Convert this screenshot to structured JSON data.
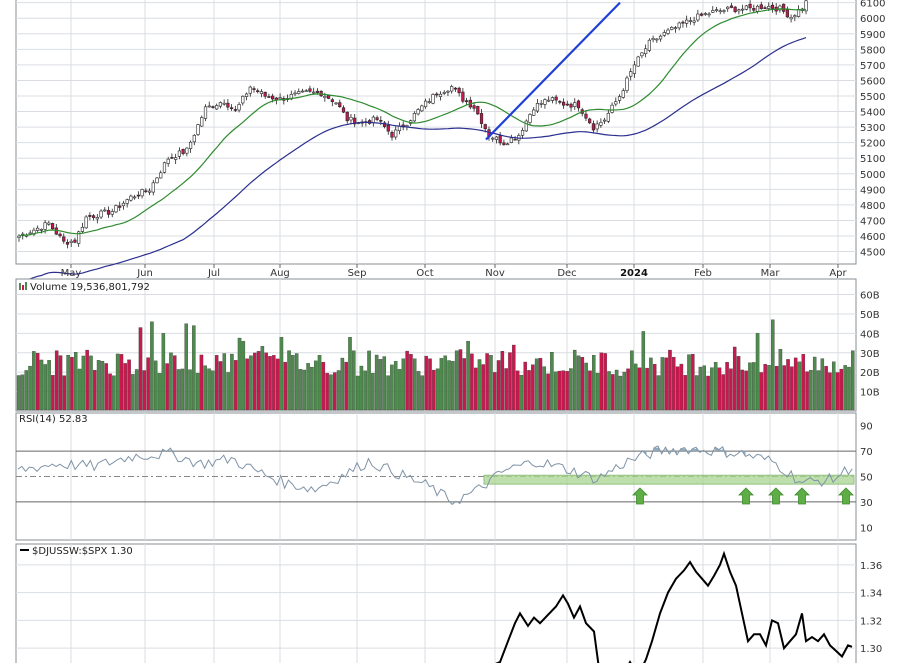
{
  "colors": {
    "up": "#4e8a4e",
    "down": "#c8194f",
    "candle_outline": "#222222",
    "ma_fast": "#2e8b2e",
    "ma_slow": "#2b2f8f",
    "trendline": "#1f3fd6",
    "rsi_line": "#7f93a6",
    "rsi_fill": "#8fa9bd",
    "rsi_band": "#a9d48f",
    "arrow": "#5fae45",
    "ratio_line": "#000000",
    "grid": "#d9dde2",
    "panel_bg": "#ffffff"
  },
  "months": [
    "May",
    "Jun",
    "Jul",
    "Aug",
    "Sep",
    "Oct",
    "Nov",
    "Dec",
    "2024",
    "Feb",
    "Mar",
    "Apr"
  ],
  "chart_data": [
    {
      "type": "candlestick",
      "y_ticks": [
        4500,
        4600,
        4700,
        4800,
        4900,
        5000,
        5100,
        5200,
        5300,
        5400,
        5500,
        5600,
        5700,
        5800,
        5900,
        6000,
        6100
      ],
      "ylim": [
        4420,
        6130
      ],
      "x_axis": "May to Apr",
      "overlays": [
        "moving-average-fast",
        "moving-average-slow",
        "trendline"
      ]
    },
    {
      "type": "bar",
      "label": "Volume",
      "value_text": "19,536,801,792",
      "y_ticks": [
        "10B",
        "20B",
        "30B",
        "40B",
        "50B",
        "60B"
      ],
      "ylim": [
        0,
        68
      ]
    },
    {
      "type": "line",
      "label": "RSI(14)",
      "value_text": "52.83",
      "y_ticks": [
        10,
        30,
        50,
        70,
        90
      ],
      "ylim": [
        0,
        100
      ],
      "reference_lines": [
        30,
        50,
        70
      ],
      "band": [
        44,
        51
      ]
    },
    {
      "type": "line",
      "label": "$DJUSSW:$SPX",
      "value_text": "1.30",
      "y_ticks": [
        "1.30",
        "1.32",
        "1.34",
        "1.36"
      ],
      "ylim": [
        1.285,
        1.375
      ]
    }
  ]
}
